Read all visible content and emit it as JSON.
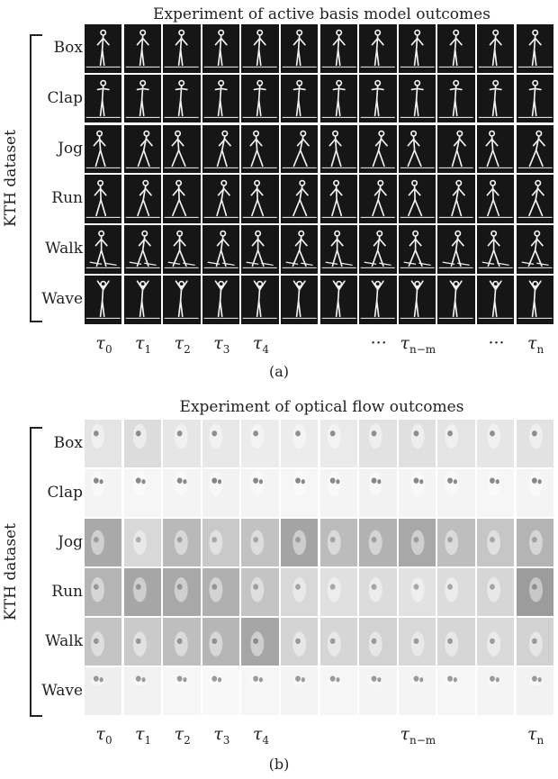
{
  "panel_a": {
    "title": "Experiment of active basis model outcomes",
    "ylabel": "KTH dataset",
    "rows": [
      "Box",
      "Clap",
      "Jog",
      "Run",
      "Walk",
      "Wave"
    ],
    "columns": [
      {
        "base": "τ",
        "sub": "0"
      },
      {
        "base": "τ",
        "sub": "1"
      },
      {
        "base": "τ",
        "sub": "2"
      },
      {
        "base": "τ",
        "sub": "3"
      },
      {
        "base": "τ",
        "sub": "4"
      },
      {
        "base": "",
        "sub": ""
      },
      {
        "base": "",
        "sub": ""
      },
      {
        "base": "···",
        "sub": ""
      },
      {
        "base": "τ",
        "sub": "n−m"
      },
      {
        "base": "",
        "sub": ""
      },
      {
        "base": "···",
        "sub": ""
      },
      {
        "base": "τ",
        "sub": "n"
      }
    ],
    "caption": "(a)"
  },
  "panel_b": {
    "title": "Experiment of optical flow outcomes",
    "ylabel": "KTH dataset",
    "rows": [
      "Box",
      "Clap",
      "Jog",
      "Run",
      "Walk",
      "Wave"
    ],
    "columns": [
      {
        "base": "τ",
        "sub": "0"
      },
      {
        "base": "τ",
        "sub": "1"
      },
      {
        "base": "τ",
        "sub": "2"
      },
      {
        "base": "τ",
        "sub": "3"
      },
      {
        "base": "τ",
        "sub": "4"
      },
      {
        "base": "",
        "sub": ""
      },
      {
        "base": "",
        "sub": ""
      },
      {
        "base": "",
        "sub": ""
      },
      {
        "base": "τ",
        "sub": "n−m"
      },
      {
        "base": "",
        "sub": ""
      },
      {
        "base": "",
        "sub": ""
      },
      {
        "base": "τ",
        "sub": "n"
      }
    ],
    "caption": "(b)",
    "row_tones": [
      [
        "#e4e4e4",
        "#dcdcdc",
        "#e6e6e6",
        "#e8e8e8",
        "#ececec",
        "#ececec",
        "#eaeaea",
        "#e2e2e2",
        "#e0e0e0",
        "#e4e4e4",
        "#e6e6e6",
        "#e2e2e2"
      ],
      [
        "#f4f4f4",
        "#f6f6f6",
        "#f4f4f4",
        "#f2f2f2",
        "#f4f4f4",
        "#f6f6f6",
        "#f4f4f4",
        "#f2f2f2",
        "#f4f4f4",
        "#f4f4f4",
        "#f6f6f6",
        "#f4f4f4"
      ],
      [
        "#a9a9a9",
        "#d8d8d8",
        "#b9b9b9",
        "#c9c9c9",
        "#c2c2c2",
        "#a4a4a4",
        "#bcbcbc",
        "#b2b2b2",
        "#a8a8a8",
        "#bebebe",
        "#c6c6c6",
        "#b4b4b4"
      ],
      [
        "#b4b4b4",
        "#a6a6a6",
        "#a8a8a8",
        "#b0b0b0",
        "#c4c4c4",
        "#d8d8d8",
        "#e0e0e0",
        "#dcdcdc",
        "#e2e2e2",
        "#dcdcdc",
        "#d6d6d6",
        "#9c9c9c"
      ],
      [
        "#c4c4c4",
        "#cacaca",
        "#bebebe",
        "#b6b6b6",
        "#a6a6a6",
        "#d4d4d4",
        "#d6d6d6",
        "#d2d2d2",
        "#d8d8d8",
        "#d6d6d6",
        "#dadada",
        "#d2d2d2"
      ],
      [
        "#eeeeee",
        "#f2f2f2",
        "#f6f6f6",
        "#f8f8f8",
        "#f6f6f6",
        "#f4f4f4",
        "#f6f6f6",
        "#f4f4f4",
        "#f4f4f4",
        "#f6f6f6",
        "#f4f4f4",
        "#f2f2f2"
      ]
    ]
  }
}
